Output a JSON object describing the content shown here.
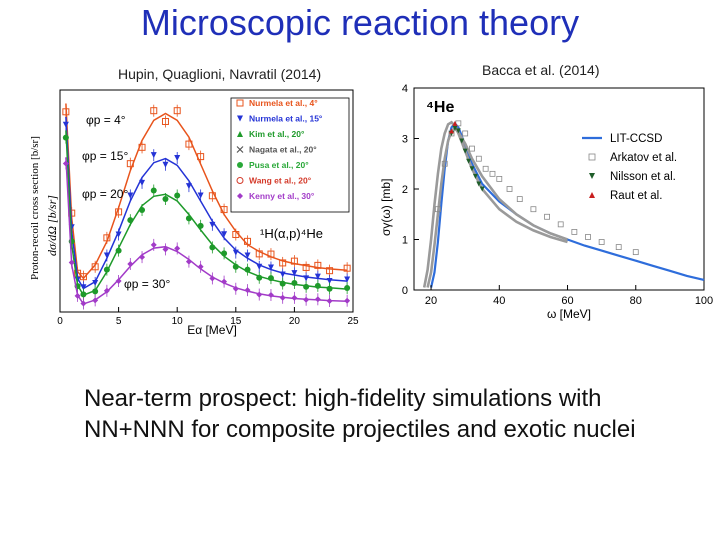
{
  "slide": {
    "title": "Microscopic reaction theory",
    "left_caption": "Hupin, Quaglioni, Navratil (2014)",
    "right_caption": "Bacca et al. (2014)",
    "bottom_text": "Near-term prospect: high-fidelity simulations with NN+NNN  for composite projectiles and exotic nuclei"
  },
  "chart_data": [
    {
      "type": "line",
      "reaction_label": "¹H(α,p)⁴He",
      "ylabel_outer": "Proton-recoil cross section [b/sr]",
      "ylabel_inner": "dσ/dΩ  [b/sr]",
      "xlabel": "Eα [MeV]",
      "xlim": [
        0,
        25
      ],
      "x_ticks": [
        "0",
        "5",
        "10",
        "15",
        "20",
        "25"
      ],
      "angle_labels": [
        "φp = 4°",
        "φp = 15°",
        "φp = 20°",
        "φp = 30°"
      ],
      "legend": [
        {
          "label": "Nurmela et al., 4°",
          "color": "#e8541c",
          "marker": "square"
        },
        {
          "label": "Nurmela et al., 15°",
          "color": "#2433d6",
          "marker": "triangle-down"
        },
        {
          "label": "Kim et al., 20°",
          "color": "#1e9a2a",
          "marker": "triangle-up"
        },
        {
          "label": "Nagata et al., 20°",
          "color": "#555555",
          "marker": "cross"
        },
        {
          "label": "Pusa et al., 20°",
          "color": "#29a838",
          "marker": "circle"
        },
        {
          "label": "Wang et al., 20°",
          "color": "#d43a2a",
          "marker": "circle-open"
        },
        {
          "label": "Kenny et al., 30°",
          "color": "#a23bc8",
          "marker": "diamond"
        }
      ],
      "series": [
        {
          "name": "4°",
          "color": "#e8541c",
          "x": [
            0.5,
            1,
            1.5,
            2,
            3,
            4,
            5,
            6,
            7,
            8,
            9,
            10,
            11,
            12,
            13,
            14,
            15,
            16,
            17,
            18,
            19,
            20,
            21,
            22,
            23,
            24.5
          ],
          "y": [
            3.1,
            1.4,
            0.6,
            0.5,
            0.7,
            1.05,
            1.55,
            2.1,
            2.55,
            2.85,
            2.95,
            2.85,
            2.6,
            2.2,
            1.8,
            1.45,
            1.2,
            1.0,
            0.9,
            0.82,
            0.76,
            0.72,
            0.69,
            0.66,
            0.64,
            0.62
          ]
        },
        {
          "name": "15°",
          "color": "#2433d6",
          "x": [
            0.5,
            1,
            1.5,
            2,
            3,
            4,
            5,
            6,
            7,
            8,
            9,
            10,
            11,
            12,
            13,
            14,
            15,
            16,
            17,
            18,
            19,
            20,
            21,
            22,
            23,
            24.5
          ],
          "y": [
            2.9,
            1.2,
            0.5,
            0.35,
            0.45,
            0.8,
            1.2,
            1.65,
            2.0,
            2.22,
            2.28,
            2.18,
            1.95,
            1.65,
            1.35,
            1.1,
            0.92,
            0.8,
            0.7,
            0.63,
            0.58,
            0.55,
            0.52,
            0.5,
            0.48,
            0.46
          ]
        },
        {
          "name": "20°",
          "color": "#1e9a2a",
          "x": [
            0.5,
            1,
            1.5,
            2,
            3,
            4,
            5,
            6,
            7,
            8,
            9,
            10,
            11,
            12,
            13,
            14,
            15,
            16,
            17,
            18,
            19,
            20,
            21,
            22,
            23,
            24.5
          ],
          "y": [
            2.7,
            1.0,
            0.4,
            0.25,
            0.32,
            0.6,
            0.95,
            1.3,
            1.58,
            1.72,
            1.75,
            1.65,
            1.45,
            1.22,
            1.0,
            0.83,
            0.7,
            0.6,
            0.53,
            0.48,
            0.44,
            0.41,
            0.39,
            0.37,
            0.36,
            0.34
          ]
        },
        {
          "name": "30°",
          "color": "#a23bc8",
          "x": [
            0.5,
            1,
            1.5,
            2,
            3,
            4,
            5,
            6,
            7,
            8,
            9,
            10,
            11,
            12,
            13,
            14,
            15,
            16,
            17,
            18,
            19,
            20,
            21,
            22,
            23,
            24.5
          ],
          "y": [
            2.3,
            0.7,
            0.25,
            0.12,
            0.18,
            0.3,
            0.48,
            0.68,
            0.85,
            0.95,
            0.97,
            0.9,
            0.78,
            0.64,
            0.52,
            0.43,
            0.36,
            0.31,
            0.27,
            0.24,
            0.22,
            0.2,
            0.19,
            0.18,
            0.17,
            0.16
          ]
        }
      ]
    },
    {
      "type": "line",
      "panel_label": "⁴He",
      "xlabel": "ω [MeV]",
      "ylabel": "σγ(ω) [mb]",
      "xlim": [
        15,
        100
      ],
      "ylim": [
        0,
        4
      ],
      "x_ticks": [
        20,
        40,
        60,
        80,
        100
      ],
      "y_ticks": [
        0,
        1,
        2,
        3,
        4
      ],
      "legend": [
        {
          "label": "LIT-CCSD",
          "color": "#2e6ddb",
          "marker": "line"
        },
        {
          "label": "Arkatov et al.",
          "color": "#888888",
          "marker": "square-open"
        },
        {
          "label": "Nilsson et al.",
          "color": "#1f5e2a",
          "marker": "triangle-down"
        },
        {
          "label": "Raut et al.",
          "color": "#c81e1e",
          "marker": "triangle-up"
        }
      ],
      "series": [
        {
          "name": "LIT-CCSD",
          "color": "#2e6ddb",
          "x": [
            20,
            21,
            22,
            23,
            24,
            25,
            26,
            27,
            28,
            29,
            30,
            32,
            35,
            40,
            45,
            50,
            55,
            60,
            65,
            70,
            75,
            80,
            85,
            90,
            95,
            100
          ],
          "y": [
            0.05,
            0.35,
            0.95,
            1.7,
            2.4,
            2.95,
            3.22,
            3.3,
            3.22,
            3.05,
            2.85,
            2.5,
            2.1,
            1.75,
            1.5,
            1.28,
            1.12,
            1.0,
            0.88,
            0.78,
            0.68,
            0.58,
            0.48,
            0.38,
            0.28,
            0.2
          ]
        },
        {
          "name": "band-upper",
          "color": "#9a9a9a",
          "x": [
            18,
            19,
            20,
            21,
            22,
            23,
            24,
            25,
            26,
            27,
            28,
            30,
            32,
            35,
            40,
            45,
            50,
            55,
            60
          ],
          "y": [
            0.05,
            0.4,
            1.0,
            1.7,
            2.3,
            2.8,
            3.1,
            3.28,
            3.32,
            3.25,
            3.1,
            2.75,
            2.4,
            2.0,
            1.6,
            1.35,
            1.18,
            1.05,
            0.95
          ]
        },
        {
          "name": "band-lower",
          "color": "#9a9a9a",
          "x": [
            19,
            20,
            21,
            22,
            23,
            24,
            25,
            26,
            27,
            28,
            30,
            32,
            35,
            40,
            45,
            50,
            55,
            60
          ],
          "y": [
            0.05,
            0.35,
            0.9,
            1.5,
            2.1,
            2.6,
            2.95,
            3.15,
            3.2,
            3.12,
            2.9,
            2.6,
            2.25,
            1.8,
            1.5,
            1.28,
            1.12,
            1.0
          ]
        },
        {
          "name": "Arkatov et al.",
          "color": "#888888",
          "marker": "square-open",
          "x": [
            22,
            24,
            26,
            28,
            30,
            32,
            34,
            36,
            38,
            40,
            43,
            46,
            50,
            54,
            58,
            62,
            66,
            70,
            75,
            80
          ],
          "y": [
            1.6,
            2.5,
            3.1,
            3.3,
            3.1,
            2.8,
            2.6,
            2.4,
            2.3,
            2.2,
            2.0,
            1.8,
            1.6,
            1.45,
            1.3,
            1.15,
            1.05,
            0.95,
            0.85,
            0.75
          ]
        },
        {
          "name": "Nilsson et al.",
          "color": "#1f5e2a",
          "marker": "triangle-down",
          "x": [
            26,
            27,
            28,
            29,
            30,
            31,
            32,
            33,
            34,
            35
          ],
          "y": [
            3.1,
            3.2,
            3.15,
            2.95,
            2.75,
            2.55,
            2.4,
            2.25,
            2.1,
            2.0
          ]
        },
        {
          "name": "Raut et al.",
          "color": "#c81e1e",
          "marker": "triangle-up",
          "x": [
            26,
            27
          ],
          "y": [
            3.15,
            3.3
          ]
        }
      ]
    }
  ]
}
